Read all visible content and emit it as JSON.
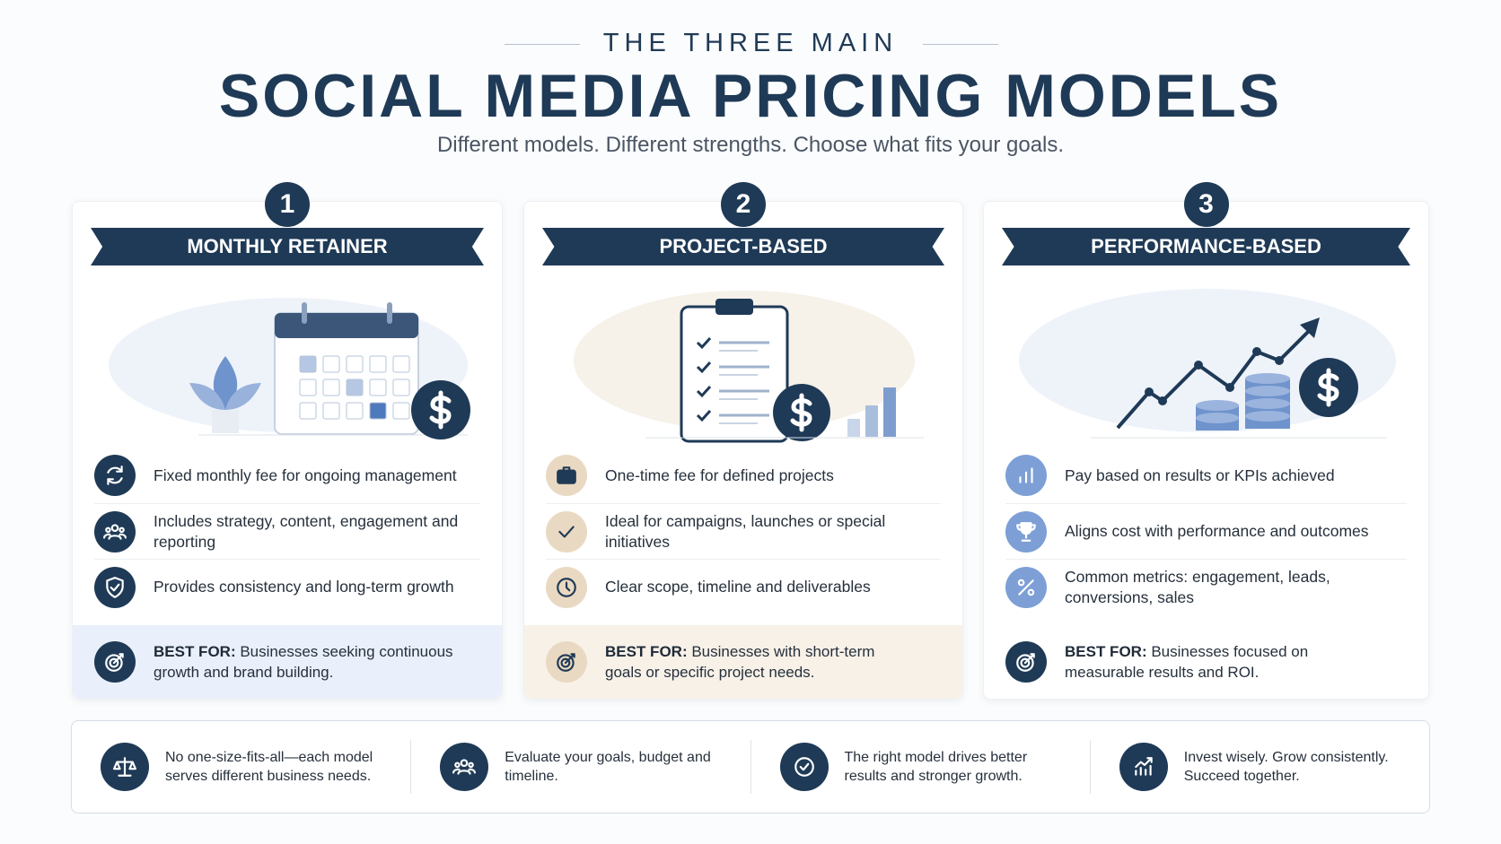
{
  "header": {
    "kicker": "THE THREE MAIN",
    "title": "SOCIAL MEDIA PRICING MODELS",
    "subtitle": "Different models. Different strengths. Choose what fits your goals."
  },
  "cards": [
    {
      "number": "1",
      "title": "MONTHLY RETAINER",
      "features": [
        "Fixed monthly fee for ongoing management",
        "Includes strategy, content, engagement and reporting",
        "Provides consistency and long-term growth"
      ],
      "best_for": {
        "label": "BEST FOR:",
        "text": "Businesses seeking continuous growth and brand building."
      }
    },
    {
      "number": "2",
      "title": "PROJECT-BASED",
      "features": [
        "One-time fee for defined projects",
        "Ideal for campaigns, launches or special initiatives",
        "Clear scope, timeline and deliverables"
      ],
      "best_for": {
        "label": "BEST FOR:",
        "text": "Businesses with short-term goals or specific project needs."
      }
    },
    {
      "number": "3",
      "title": "PERFORMANCE-BASED",
      "features": [
        "Pay based on results or KPIs achieved",
        "Aligns cost with performance and outcomes",
        "Common metrics: engagement, leads, conversions, sales"
      ],
      "best_for": {
        "label": "BEST FOR:",
        "text": "Businesses focused on measurable results and ROI."
      }
    }
  ],
  "footer": [
    "No one-size-fits-all—each model serves different business needs.",
    "Evaluate your goals, budget and timeline.",
    "The right model drives better results and stronger growth.",
    "Invest wisely. Grow consistently. Succeed together."
  ]
}
